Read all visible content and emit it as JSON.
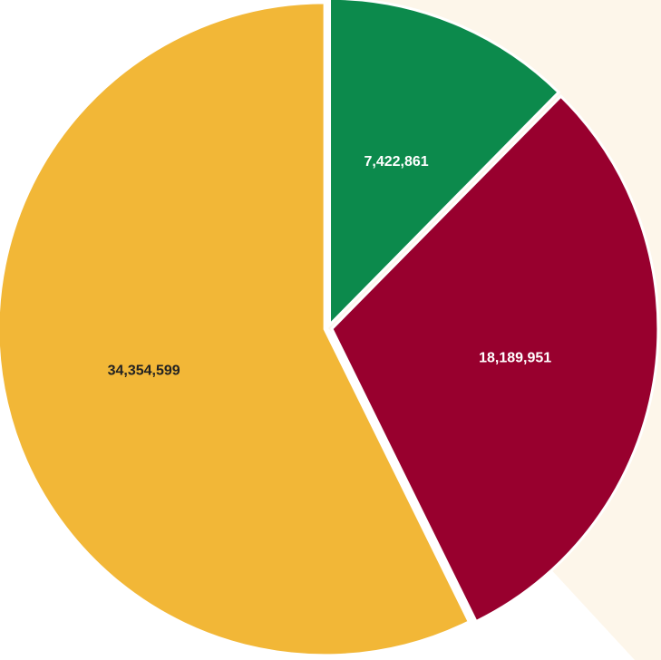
{
  "chart_data": {
    "type": "pie",
    "slices": [
      {
        "label": "7,422,861",
        "value": 7422861,
        "color": "#0c8a4c",
        "label_color": "#ffffff"
      },
      {
        "label": "18,189,951",
        "value": 18189951,
        "color": "#98002e",
        "label_color": "#ffffff"
      },
      {
        "label": "34,354,599",
        "value": 34354599,
        "color": "#f2b737",
        "label_color": "#222222"
      }
    ],
    "background_accent_color": "#fdf6ea",
    "separator_color": "#ffffff"
  }
}
